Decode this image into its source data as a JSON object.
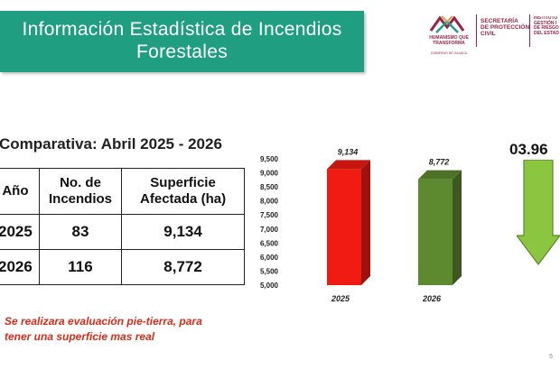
{
  "title": {
    "line1": "Información Estadística de Incendios",
    "line2": "Forestales"
  },
  "logos": {
    "gov_lines": [
      "HUMANISMO QUE",
      "TRANSFORMA"
    ],
    "gov_sub": "GOBIERNO DE OAXACA",
    "secretaria_lines": [
      "SECRETARÍA",
      "DE PROTECCIÓN",
      "CIVIL"
    ],
    "instituto_lines": [
      "INSTITUTO",
      "GESTIÓN I",
      "DE RIESGO",
      "DEL ESTAD"
    ]
  },
  "subtitle": "Comparativa: Abril 2025 - 2026",
  "table": {
    "headers": [
      "Año",
      "No. de Incendios",
      "Superficie Afectada (ha)"
    ],
    "rows": [
      {
        "year": "2025",
        "incendios": "83",
        "superficie": "9,134"
      },
      {
        "year": "2026",
        "incendios": "116",
        "superficie": "8,772"
      }
    ]
  },
  "note": {
    "line1": "Se realizara evaluación pie-tierra, para",
    "line2": "tener una superficie mas real"
  },
  "chart_data": {
    "type": "bar",
    "categories": [
      "2025",
      "2026"
    ],
    "values": [
      9134,
      8772
    ],
    "value_labels": [
      "9,134",
      "8,772"
    ],
    "ylim": [
      5000,
      9500
    ],
    "yticks": [
      5000,
      5500,
      6000,
      6500,
      7000,
      7500,
      8000,
      8500,
      9000,
      9500
    ],
    "ytick_labels": [
      "5,000",
      "5,500",
      "6,000",
      "6,500",
      "7,000",
      "7,500",
      "8,000",
      "8,500",
      "9,000",
      "9,500"
    ],
    "colors": [
      "#f01c14",
      "#5d8a2f"
    ],
    "grid": false
  },
  "percent_change": "03.96",
  "arrow_color": "#8cc540",
  "page_number": "5"
}
